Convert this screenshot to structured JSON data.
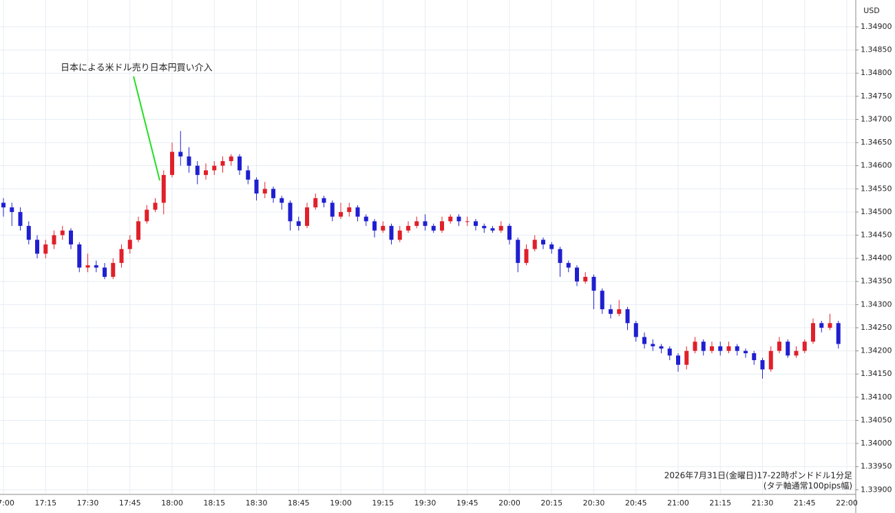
{
  "chart_data": {
    "type": "candlestick",
    "annotation": "日本による米ドル売り日本円買い介入",
    "note_lines": [
      "2026年7月31日(金曜日)17-22時ポンドドル1分足",
      "(タテ軸通常100pips幅)"
    ],
    "axis_unit": "USD",
    "up_color": "#e0202a",
    "down_color": "#1f1fd0",
    "grid": true,
    "x": [
      "17:00",
      "17:03",
      "17:06",
      "17:09",
      "17:12",
      "17:15",
      "17:18",
      "17:21",
      "17:24",
      "17:27",
      "17:30",
      "17:33",
      "17:36",
      "17:39",
      "17:42",
      "17:45",
      "17:48",
      "17:51",
      "17:54",
      "17:57",
      "18:00",
      "18:03",
      "18:06",
      "18:09",
      "18:12",
      "18:15",
      "18:18",
      "18:21",
      "18:24",
      "18:27",
      "18:30",
      "18:33",
      "18:36",
      "18:39",
      "18:42",
      "18:45",
      "18:48",
      "18:51",
      "18:54",
      "18:57",
      "19:00",
      "19:03",
      "19:06",
      "19:09",
      "19:12",
      "19:15",
      "19:18",
      "19:21",
      "19:24",
      "19:27",
      "19:30",
      "19:33",
      "19:36",
      "19:39",
      "19:42",
      "19:45",
      "19:48",
      "19:51",
      "19:54",
      "19:57",
      "20:00",
      "20:03",
      "20:06",
      "20:09",
      "20:12",
      "20:15",
      "20:18",
      "20:21",
      "20:24",
      "20:27",
      "20:30",
      "20:33",
      "20:36",
      "20:39",
      "20:42",
      "20:45",
      "20:48",
      "20:51",
      "20:54",
      "20:57",
      "21:00",
      "21:03",
      "21:06",
      "21:09",
      "21:12",
      "21:15",
      "21:18",
      "21:21",
      "21:24",
      "21:27",
      "21:30",
      "21:33",
      "21:36",
      "21:39",
      "21:42",
      "21:45",
      "21:48",
      "21:51",
      "21:54",
      "21:57"
    ],
    "open": [
      1.3452,
      1.3451,
      1.345,
      1.3447,
      1.3444,
      1.3441,
      1.3443,
      1.3445,
      1.3446,
      1.3443,
      1.3438,
      1.34385,
      1.3438,
      1.3436,
      1.3439,
      1.3442,
      1.3444,
      1.3448,
      1.34505,
      1.3452,
      1.3458,
      1.3463,
      1.3462,
      1.346,
      1.3458,
      1.3459,
      1.346,
      1.3461,
      1.3462,
      1.3459,
      1.3457,
      1.3454,
      1.3455,
      1.3453,
      1.3452,
      1.3448,
      1.3447,
      1.3451,
      1.3453,
      1.3452,
      1.3449,
      1.345,
      1.3451,
      1.3449,
      1.3448,
      1.3446,
      1.3447,
      1.3444,
      1.3446,
      1.3447,
      1.3448,
      1.3447,
      1.3446,
      1.3448,
      1.3449,
      1.3448,
      1.3448,
      1.3447,
      1.34465,
      1.3446,
      1.3447,
      1.3444,
      1.3439,
      1.3442,
      1.3444,
      1.3443,
      1.3442,
      1.3439,
      1.3438,
      1.3435,
      1.3436,
      1.3433,
      1.3429,
      1.3428,
      1.3429,
      1.3426,
      1.3423,
      1.34215,
      1.3421,
      1.34205,
      1.3419,
      1.3417,
      1.342,
      1.3422,
      1.342,
      1.3421,
      1.342,
      1.3421,
      1.342,
      1.34195,
      1.3418,
      1.3416,
      1.342,
      1.3422,
      1.3419,
      1.342,
      1.3422,
      1.3426,
      1.3425,
      1.3426
    ],
    "high": [
      1.3453,
      1.3452,
      1.3451,
      1.3448,
      1.3445,
      1.3444,
      1.3446,
      1.3447,
      1.34465,
      1.34435,
      1.3441,
      1.34395,
      1.3439,
      1.344,
      1.3443,
      1.3445,
      1.3449,
      1.34515,
      1.3453,
      1.3459,
      1.3465,
      1.34675,
      1.3464,
      1.3461,
      1.34605,
      1.3461,
      1.3462,
      1.34625,
      1.34625,
      1.346,
      1.34575,
      1.34565,
      1.34555,
      1.34535,
      1.34525,
      1.3449,
      1.3452,
      1.3454,
      1.34535,
      1.34525,
      1.3452,
      1.3452,
      1.34515,
      1.34495,
      1.34485,
      1.3448,
      1.34475,
      1.3447,
      1.3448,
      1.3449,
      1.34495,
      1.34475,
      1.3449,
      1.34495,
      1.34495,
      1.3449,
      1.34485,
      1.34475,
      1.3447,
      1.3448,
      1.34475,
      1.34445,
      1.3443,
      1.3445,
      1.34445,
      1.34435,
      1.34425,
      1.34395,
      1.34385,
      1.3437,
      1.34365,
      1.34335,
      1.343,
      1.3431,
      1.34295,
      1.34265,
      1.3424,
      1.34225,
      1.34215,
      1.3421,
      1.34195,
      1.3421,
      1.3423,
      1.34225,
      1.3422,
      1.3422,
      1.3422,
      1.34215,
      1.34205,
      1.342,
      1.34185,
      1.3421,
      1.3423,
      1.34225,
      1.3421,
      1.34225,
      1.3427,
      1.34265,
      1.3428,
      1.34265
    ],
    "low": [
      1.3449,
      1.3447,
      1.3446,
      1.3443,
      1.344,
      1.344,
      1.3442,
      1.3444,
      1.3442,
      1.3437,
      1.3437,
      1.3437,
      1.34355,
      1.34355,
      1.3438,
      1.3441,
      1.34435,
      1.34475,
      1.345,
      1.34495,
      1.34575,
      1.346,
      1.34585,
      1.3456,
      1.3457,
      1.3458,
      1.34585,
      1.346,
      1.3458,
      1.3456,
      1.34525,
      1.3453,
      1.3452,
      1.34505,
      1.3446,
      1.3446,
      1.34465,
      1.34505,
      1.3451,
      1.3448,
      1.34485,
      1.3449,
      1.3448,
      1.3447,
      1.34445,
      1.34455,
      1.3443,
      1.34435,
      1.34455,
      1.34465,
      1.3446,
      1.34455,
      1.34455,
      1.34475,
      1.3447,
      1.3447,
      1.3446,
      1.34455,
      1.34455,
      1.34455,
      1.3443,
      1.3437,
      1.34385,
      1.34415,
      1.3442,
      1.3441,
      1.3436,
      1.3437,
      1.3434,
      1.34345,
      1.3429,
      1.3428,
      1.3427,
      1.34275,
      1.34245,
      1.3422,
      1.34205,
      1.342,
      1.34195,
      1.3418,
      1.34155,
      1.3416,
      1.34195,
      1.3419,
      1.34195,
      1.3419,
      1.34195,
      1.3419,
      1.34185,
      1.3417,
      1.3414,
      1.34155,
      1.34195,
      1.34185,
      1.34185,
      1.34195,
      1.34215,
      1.3424,
      1.34245,
      1.34205
    ],
    "close": [
      1.3451,
      1.345,
      1.3447,
      1.3444,
      1.3441,
      1.3443,
      1.3445,
      1.3446,
      1.3443,
      1.3438,
      1.34385,
      1.3438,
      1.3436,
      1.3439,
      1.3442,
      1.3444,
      1.3448,
      1.34505,
      1.3452,
      1.3458,
      1.3463,
      1.3462,
      1.346,
      1.3458,
      1.3459,
      1.346,
      1.3461,
      1.3462,
      1.3459,
      1.3457,
      1.3454,
      1.3455,
      1.3453,
      1.3452,
      1.3448,
      1.3447,
      1.3451,
      1.3453,
      1.3452,
      1.3449,
      1.345,
      1.3451,
      1.3449,
      1.3448,
      1.3446,
      1.3447,
      1.3444,
      1.3446,
      1.3447,
      1.3448,
      1.3447,
      1.3446,
      1.3448,
      1.3449,
      1.3448,
      1.3448,
      1.3447,
      1.34465,
      1.3446,
      1.3447,
      1.3444,
      1.3439,
      1.3442,
      1.3444,
      1.3443,
      1.3442,
      1.3439,
      1.3438,
      1.3435,
      1.3436,
      1.3433,
      1.3429,
      1.3428,
      1.3429,
      1.3426,
      1.3423,
      1.34215,
      1.3421,
      1.34205,
      1.3419,
      1.3417,
      1.342,
      1.3422,
      1.342,
      1.3421,
      1.342,
      1.3421,
      1.342,
      1.34195,
      1.3418,
      1.3416,
      1.342,
      1.3422,
      1.3419,
      1.342,
      1.3422,
      1.3426,
      1.3425,
      1.3426,
      1.34215
    ],
    "xticks": [
      {
        "value": 0,
        "label": "17:00"
      },
      {
        "value": 5,
        "label": "17:15"
      },
      {
        "value": 10,
        "label": "17:30"
      },
      {
        "value": 15,
        "label": "17:45"
      },
      {
        "value": 20,
        "label": "18:00"
      },
      {
        "value": 25,
        "label": "18:15"
      },
      {
        "value": 30,
        "label": "18:30"
      },
      {
        "value": 35,
        "label": "18:45"
      },
      {
        "value": 40,
        "label": "19:00"
      },
      {
        "value": 45,
        "label": "19:15"
      },
      {
        "value": 50,
        "label": "19:30"
      },
      {
        "value": 55,
        "label": "19:45"
      },
      {
        "value": 60,
        "label": "20:00"
      },
      {
        "value": 65,
        "label": "20:15"
      },
      {
        "value": 70,
        "label": "20:30"
      },
      {
        "value": 75,
        "label": "20:45"
      },
      {
        "value": 80,
        "label": "21:00"
      },
      {
        "value": 85,
        "label": "21:15"
      },
      {
        "value": 90,
        "label": "21:30"
      },
      {
        "value": 95,
        "label": "21:45"
      },
      {
        "value": 100,
        "label": "22:00"
      }
    ],
    "ylim": [
      1.3389,
      1.34958
    ],
    "yticks": [
      {
        "value": 1.339,
        "label": "1.33900"
      },
      {
        "value": 1.3395,
        "label": "1.33950"
      },
      {
        "value": 1.34,
        "label": "1.34000"
      },
      {
        "value": 1.3405,
        "label": "1.34050"
      },
      {
        "value": 1.341,
        "label": "1.34100"
      },
      {
        "value": 1.3415,
        "label": "1.34150"
      },
      {
        "value": 1.342,
        "label": "1.34200"
      },
      {
        "value": 1.3425,
        "label": "1.34250"
      },
      {
        "value": 1.343,
        "label": "1.34300"
      },
      {
        "value": 1.3435,
        "label": "1.34350"
      },
      {
        "value": 1.344,
        "label": "1.34400"
      },
      {
        "value": 1.3445,
        "label": "1.34450"
      },
      {
        "value": 1.345,
        "label": "1.34500"
      },
      {
        "value": 1.3455,
        "label": "1.34550"
      },
      {
        "value": 1.346,
        "label": "1.34600"
      },
      {
        "value": 1.3465,
        "label": "1.34650"
      },
      {
        "value": 1.347,
        "label": "1.34700"
      },
      {
        "value": 1.3475,
        "label": "1.34750"
      },
      {
        "value": 1.348,
        "label": "1.34800"
      },
      {
        "value": 1.3485,
        "label": "1.34850"
      },
      {
        "value": 1.349,
        "label": "1.34900"
      }
    ]
  }
}
